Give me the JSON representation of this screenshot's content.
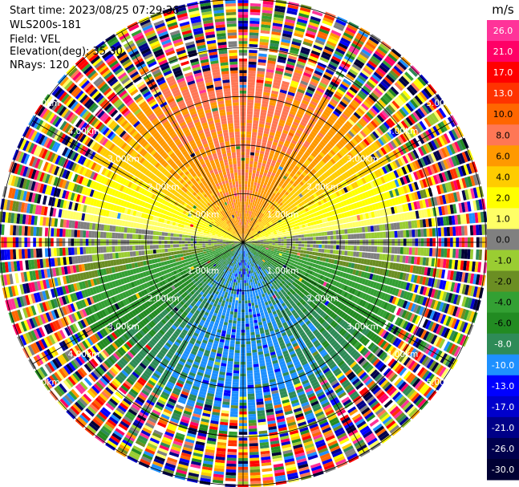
{
  "header": {
    "start_time": "Start time: 2023/08/25 07:29:36",
    "radar": "WLS200s-181",
    "field": "Field: VEL",
    "elevation": "Elevation(deg): 35.30",
    "nrays": "NRays: 120"
  },
  "chart_data": {
    "type": "heatmap",
    "projection": "polar-ppi",
    "field": "VEL",
    "units": "m/s",
    "nrays": 120,
    "max_range_km": 5.0,
    "range_rings_km": [
      1.0,
      2.0,
      3.0,
      4.0,
      5.0
    ],
    "ring_labels": [
      "1.00km",
      "2.00km",
      "3.00km",
      "4.00km",
      "5.00km"
    ],
    "clean_data_range_km": 3.4,
    "colorbar": {
      "title": "m/s",
      "levels": [
        "26.0",
        "21.0",
        "17.0",
        "13.0",
        "10.0",
        "8.0",
        "6.0",
        "4.0",
        "2.0",
        "1.0",
        "0.0",
        "-1.0",
        "-2.0",
        "-4.0",
        "-6.0",
        "-8.0",
        "-10.0",
        "-13.0",
        "-17.0",
        "-21.0",
        "-26.0",
        "-30.0"
      ],
      "colors": [
        "#ff3399",
        "#ff0066",
        "#ff0000",
        "#ff3300",
        "#ff6600",
        "#ff7755",
        "#ff9900",
        "#ffcc00",
        "#ffff00",
        "#ffff66",
        "#808080",
        "#9acd32",
        "#6b8e23",
        "#33a033",
        "#228b22",
        "#2e8b57",
        "#1e90ff",
        "#0000ff",
        "#0000cc",
        "#000088",
        "#00004d",
        "#000033"
      ]
    },
    "velocity_pattern": {
      "north_sector_ms": 8.0,
      "south_sector_ms": -10.0,
      "pattern": "cosine of azimuth (approaching south, receding north)"
    }
  }
}
